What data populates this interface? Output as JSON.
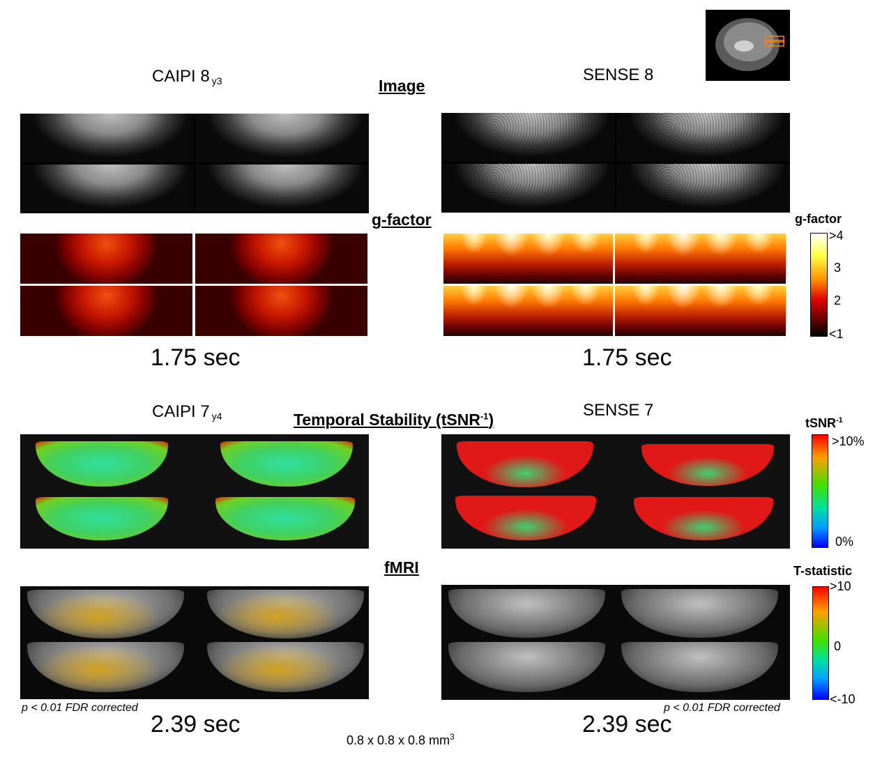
{
  "thumbnail": {
    "name": "sagittal-localizer"
  },
  "panel_labels": {
    "caipi8": {
      "main": "CAIPI 8",
      "sub": "y3"
    },
    "sense8": {
      "main": "SENSE 8"
    },
    "caipi7": {
      "main": "CAIPI 7",
      "sub": "y4"
    },
    "sense7": {
      "main": "SENSE 7"
    }
  },
  "section_titles": {
    "image": "Image",
    "gfactor": "g-factor",
    "tsnr_main": "Temporal Stability (tSNR",
    "tsnr_sup": "-1",
    "tsnr_end": ")",
    "fmri": "fMRI"
  },
  "times": {
    "top_left": "1.75 sec",
    "top_right": "1.75 sec",
    "bottom_left": "2.39 sec",
    "bottom_right": "2.39 sec"
  },
  "notes": {
    "left": "p < 0.01 FDR corrected",
    "right": "p < 0.01 FDR corrected"
  },
  "voxel": {
    "main": "0.8 x 0.8 x 0.8 mm",
    "sup": "3"
  },
  "colorbars": {
    "gfactor": {
      "title": "g-factor",
      "ticks": [
        ">4",
        "3",
        "2",
        "<1"
      ],
      "colors": [
        "#ffffff",
        "#ffff40",
        "#ff8000",
        "#e00000",
        "#600000",
        "#000000"
      ]
    },
    "tsnr": {
      "title_main": "tSNR",
      "title_sup": "-1",
      "ticks": [
        ">10%",
        "0%"
      ],
      "colors": [
        "#ff0000",
        "#ffa000",
        "#40e000",
        "#00e0a0",
        "#00a0ff",
        "#0000ff"
      ]
    },
    "tstat": {
      "title": "T-statistic",
      "ticks": [
        ">10",
        "0",
        "<-10"
      ],
      "colors": [
        "#ff0000",
        "#ffa000",
        "#40e000",
        "#00e0a0",
        "#00a0ff",
        "#0000ff"
      ]
    }
  }
}
